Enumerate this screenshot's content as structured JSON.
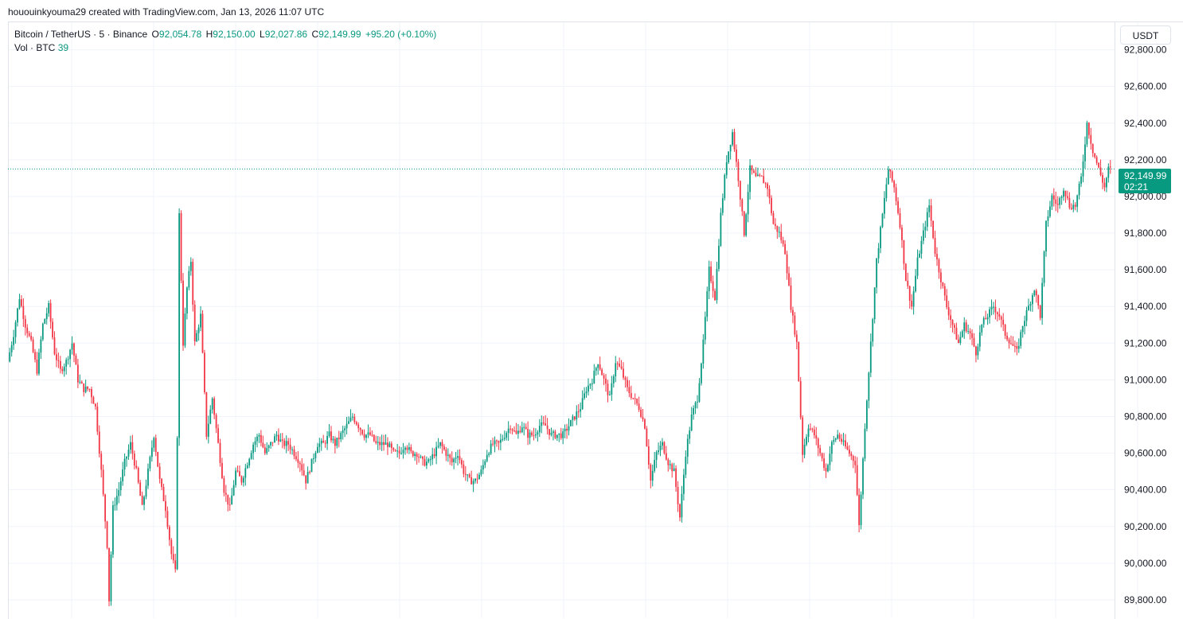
{
  "header": {
    "credit": "hououinkyouma29 created with TradingView.com, Jan 13, 2026 11:07 UTC"
  },
  "legend": {
    "symbol": "Bitcoin / TetherUS · 5 · Binance",
    "open_label": "O",
    "open": "92,054.78",
    "high_label": "H",
    "high": "92,150.00",
    "low_label": "L",
    "low": "92,027.86",
    "close_label": "C",
    "close": "92,149.99",
    "change": "+95.20 (+0.10%)",
    "vol_label": "Vol · BTC",
    "vol": "39"
  },
  "price_scale": {
    "currency": "USDT",
    "last_price": "92,149.99",
    "countdown": "02:21"
  },
  "colors": {
    "up": "#089981",
    "down": "#f23645",
    "grid": "#f0f3fa"
  },
  "chart_data": {
    "type": "candlestick",
    "interval": "5",
    "exchange": "Binance",
    "symbol": "BTCUSDT",
    "ylim": [
      89700,
      92950
    ],
    "yticks": [
      89800,
      90000,
      90200,
      90400,
      90600,
      90800,
      91000,
      91200,
      91400,
      91600,
      91800,
      92000,
      92200,
      92400,
      92600,
      92800
    ],
    "ytick_labels": [
      "89,800.00",
      "90,000.00",
      "90,200.00",
      "90,400.00",
      "90,600.00",
      "90,800.00",
      "91,000.00",
      "91,200.00",
      "91,400.00",
      "91,600.00",
      "91,800.00",
      "92,000.00",
      "92,200.00",
      "92,400.00",
      "92,600.00",
      "92,800.00"
    ],
    "last_price": 92149.99,
    "price_path": [
      [
        0,
        91100
      ],
      [
        3,
        91250
      ],
      [
        6,
        91450
      ],
      [
        9,
        91300
      ],
      [
        12,
        91200
      ],
      [
        15,
        91050
      ],
      [
        18,
        91300
      ],
      [
        21,
        91400
      ],
      [
        24,
        91150
      ],
      [
        27,
        91050
      ],
      [
        30,
        91100
      ],
      [
        33,
        91200
      ],
      [
        36,
        91000
      ],
      [
        39,
        90950
      ],
      [
        42,
        90950
      ],
      [
        45,
        90850
      ],
      [
        48,
        90500
      ],
      [
        51,
        90100
      ],
      [
        52,
        89800
      ],
      [
        54,
        90300
      ],
      [
        57,
        90400
      ],
      [
        60,
        90550
      ],
      [
        63,
        90650
      ],
      [
        66,
        90500
      ],
      [
        69,
        90300
      ],
      [
        72,
        90500
      ],
      [
        75,
        90700
      ],
      [
        78,
        90450
      ],
      [
        81,
        90300
      ],
      [
        84,
        90050
      ],
      [
        86,
        89950
      ],
      [
        87,
        90700
      ],
      [
        88,
        91900
      ],
      [
        90,
        91200
      ],
      [
        92,
        91500
      ],
      [
        94,
        91650
      ],
      [
        96,
        91200
      ],
      [
        99,
        91350
      ],
      [
        102,
        90700
      ],
      [
        105,
        90900
      ],
      [
        108,
        90650
      ],
      [
        111,
        90400
      ],
      [
        114,
        90300
      ],
      [
        117,
        90500
      ],
      [
        120,
        90450
      ],
      [
        123,
        90550
      ],
      [
        126,
        90650
      ],
      [
        129,
        90700
      ],
      [
        132,
        90600
      ],
      [
        135,
        90650
      ],
      [
        138,
        90700
      ],
      [
        141,
        90650
      ],
      [
        144,
        90650
      ],
      [
        147,
        90600
      ],
      [
        150,
        90550
      ],
      [
        153,
        90450
      ],
      [
        156,
        90550
      ],
      [
        159,
        90650
      ],
      [
        162,
        90650
      ],
      [
        165,
        90700
      ],
      [
        168,
        90650
      ],
      [
        171,
        90700
      ],
      [
        174,
        90750
      ],
      [
        177,
        90800
      ],
      [
        180,
        90750
      ],
      [
        183,
        90700
      ],
      [
        186,
        90700
      ],
      [
        189,
        90650
      ],
      [
        192,
        90650
      ],
      [
        195,
        90650
      ],
      [
        198,
        90600
      ],
      [
        201,
        90600
      ],
      [
        204,
        90650
      ],
      [
        207,
        90600
      ],
      [
        210,
        90600
      ],
      [
        213,
        90550
      ],
      [
        216,
        90550
      ],
      [
        219,
        90600
      ],
      [
        222,
        90650
      ],
      [
        225,
        90600
      ],
      [
        228,
        90550
      ],
      [
        231,
        90600
      ],
      [
        234,
        90500
      ],
      [
        237,
        90450
      ],
      [
        240,
        90450
      ],
      [
        243,
        90500
      ],
      [
        246,
        90600
      ],
      [
        249,
        90650
      ],
      [
        252,
        90650
      ],
      [
        255,
        90700
      ],
      [
        258,
        90750
      ],
      [
        261,
        90700
      ],
      [
        264,
        90750
      ],
      [
        267,
        90700
      ],
      [
        270,
        90700
      ],
      [
        273,
        90750
      ],
      [
        276,
        90750
      ],
      [
        279,
        90700
      ],
      [
        282,
        90700
      ],
      [
        285,
        90700
      ],
      [
        288,
        90750
      ],
      [
        291,
        90800
      ],
      [
        294,
        90850
      ],
      [
        297,
        90950
      ],
      [
        300,
        91000
      ],
      [
        303,
        91100
      ],
      [
        306,
        91000
      ],
      [
        309,
        90900
      ],
      [
        312,
        91100
      ],
      [
        315,
        91050
      ],
      [
        318,
        90950
      ],
      [
        321,
        90900
      ],
      [
        324,
        90850
      ],
      [
        327,
        90750
      ],
      [
        330,
        90450
      ],
      [
        333,
        90600
      ],
      [
        336,
        90650
      ],
      [
        339,
        90550
      ],
      [
        342,
        90500
      ],
      [
        345,
        90250
      ],
      [
        348,
        90600
      ],
      [
        351,
        90800
      ],
      [
        354,
        90900
      ],
      [
        357,
        91200
      ],
      [
        360,
        91600
      ],
      [
        363,
        91450
      ],
      [
        366,
        91900
      ],
      [
        369,
        92200
      ],
      [
        372,
        92350
      ],
      [
        375,
        92100
      ],
      [
        378,
        91800
      ],
      [
        381,
        92150
      ],
      [
        384,
        92100
      ],
      [
        387,
        92100
      ],
      [
        390,
        92050
      ],
      [
        393,
        91850
      ],
      [
        396,
        91800
      ],
      [
        399,
        91700
      ],
      [
        402,
        91400
      ],
      [
        405,
        91200
      ],
      [
        408,
        90600
      ],
      [
        411,
        90750
      ],
      [
        414,
        90700
      ],
      [
        417,
        90600
      ],
      [
        420,
        90500
      ],
      [
        423,
        90650
      ],
      [
        426,
        90700
      ],
      [
        429,
        90650
      ],
      [
        432,
        90600
      ],
      [
        435,
        90550
      ],
      [
        437,
        90200
      ],
      [
        440,
        90750
      ],
      [
        443,
        91200
      ],
      [
        446,
        91650
      ],
      [
        449,
        91900
      ],
      [
        452,
        92150
      ],
      [
        455,
        92050
      ],
      [
        458,
        91850
      ],
      [
        461,
        91550
      ],
      [
        464,
        91400
      ],
      [
        467,
        91650
      ],
      [
        470,
        91800
      ],
      [
        473,
        91950
      ],
      [
        476,
        91700
      ],
      [
        479,
        91550
      ],
      [
        482,
        91400
      ],
      [
        485,
        91300
      ],
      [
        488,
        91200
      ],
      [
        491,
        91300
      ],
      [
        494,
        91250
      ],
      [
        497,
        91150
      ],
      [
        500,
        91300
      ],
      [
        503,
        91350
      ],
      [
        506,
        91400
      ],
      [
        509,
        91350
      ],
      [
        512,
        91250
      ],
      [
        515,
        91200
      ],
      [
        518,
        91150
      ],
      [
        521,
        91300
      ],
      [
        524,
        91400
      ],
      [
        527,
        91500
      ],
      [
        530,
        91350
      ],
      [
        533,
        91850
      ],
      [
        536,
        92000
      ],
      [
        539,
        91950
      ],
      [
        542,
        92050
      ],
      [
        545,
        91950
      ],
      [
        548,
        91950
      ],
      [
        551,
        92100
      ],
      [
        554,
        92400
      ],
      [
        557,
        92250
      ],
      [
        560,
        92150
      ],
      [
        563,
        92050
      ],
      [
        565,
        92150
      ]
    ],
    "bars": 566
  }
}
